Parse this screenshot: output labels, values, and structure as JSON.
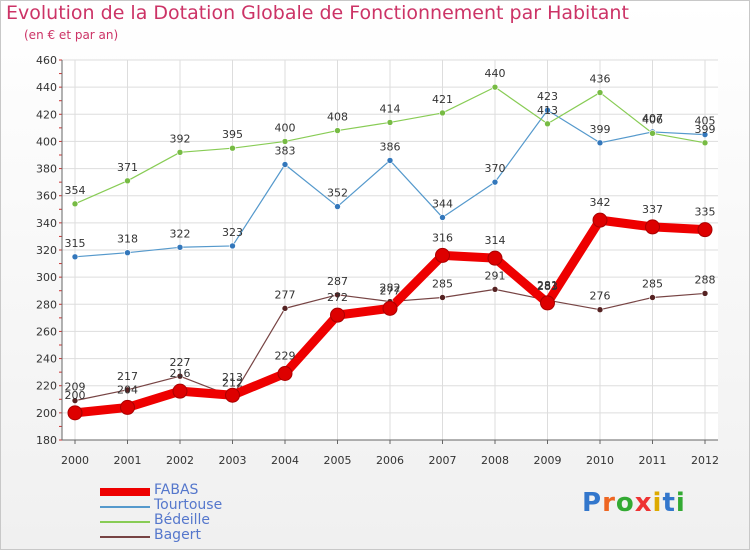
{
  "chart_data": {
    "type": "line",
    "title": "Evolution de la Dotation Globale de Fonctionnement par Habitant",
    "subtitle": "(en € et par an)",
    "x": [
      "2000",
      "2001",
      "2002",
      "2003",
      "2004",
      "2005",
      "2006",
      "2007",
      "2008",
      "2009",
      "2010",
      "2011",
      "2012"
    ],
    "ylim": [
      180,
      460
    ],
    "yticks": [
      180,
      200,
      220,
      240,
      260,
      280,
      300,
      320,
      340,
      360,
      380,
      400,
      420,
      440,
      460
    ],
    "grid": true,
    "legend_position": "bottom-left",
    "series": [
      {
        "name": "FABAS",
        "color": "#ee0000",
        "marker": "#dd0000",
        "width": 9,
        "values": [
          200,
          204,
          216,
          213,
          229,
          272,
          277,
          316,
          314,
          281,
          342,
          337,
          335
        ]
      },
      {
        "name": "Tourtouse",
        "color": "#5599cc",
        "marker": "#3377bb",
        "width": 1.2,
        "values": [
          315,
          318,
          322,
          323,
          383,
          352,
          386,
          344,
          370,
          423,
          399,
          407,
          405
        ]
      },
      {
        "name": "Bédeille",
        "color": "#88cc55",
        "marker": "#77bb44",
        "width": 1.2,
        "values": [
          354,
          371,
          392,
          395,
          400,
          408,
          414,
          421,
          440,
          413,
          436,
          406,
          399
        ]
      },
      {
        "name": "Bagert",
        "color": "#774444",
        "marker": "#552222",
        "width": 1.2,
        "values": [
          209,
          217,
          227,
          212,
          277,
          287,
          282,
          285,
          291,
          283,
          276,
          285,
          288
        ]
      }
    ]
  },
  "logo": {
    "text": "Proxiti",
    "letters": [
      "P",
      "r",
      "o",
      "x",
      "i",
      "t",
      "i"
    ],
    "colors": [
      "#3377cc",
      "#ee6622",
      "#33aa33",
      "#ee3333",
      "#ddaa00",
      "#3377cc",
      "#33aa33"
    ]
  }
}
